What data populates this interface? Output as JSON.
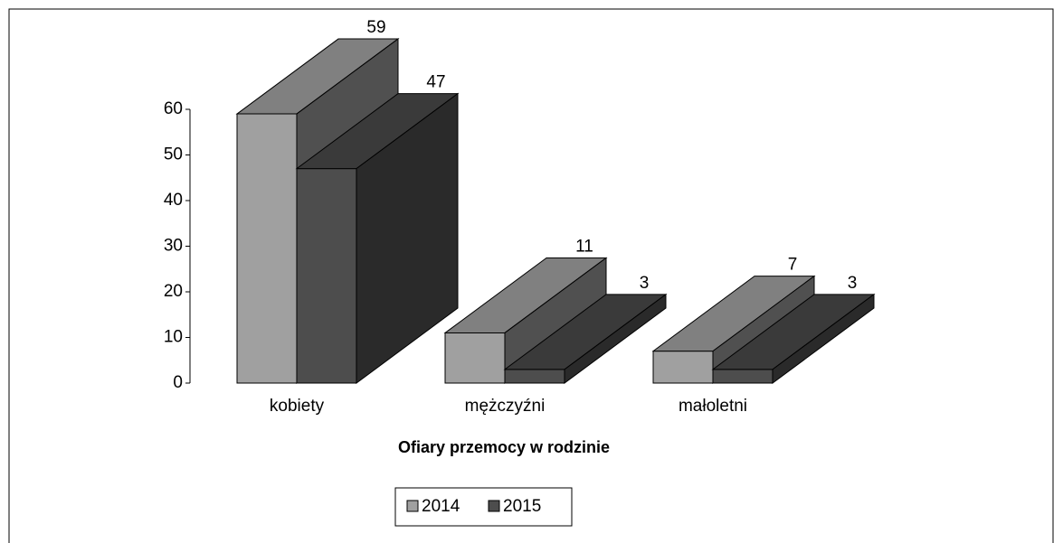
{
  "chart_data": {
    "type": "bar3d",
    "title": "Ofiary przemocy w rodzinie",
    "categories": [
      "kobiety",
      "mężczyźni",
      "małoletni"
    ],
    "series": [
      {
        "name": "2014",
        "color": "#a0a0a0",
        "values": [
          59,
          11,
          7
        ]
      },
      {
        "name": "2015",
        "color": "#4d4d4d",
        "values": [
          47,
          3,
          3
        ]
      }
    ],
    "ylim": [
      0,
      60
    ],
    "yticks": [
      0,
      10,
      20,
      30,
      40,
      50,
      60
    ],
    "legend": "bottom"
  }
}
